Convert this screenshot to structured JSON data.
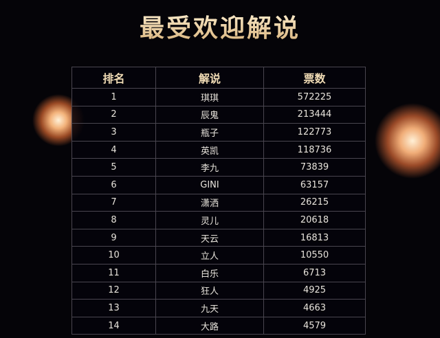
{
  "title": "最受欢迎解说",
  "table": {
    "headers": [
      "排名",
      "解说",
      "票数"
    ],
    "rows": [
      [
        "1",
        "琪琪",
        "572225"
      ],
      [
        "2",
        "辰鬼",
        "213444"
      ],
      [
        "3",
        "瓶子",
        "122773"
      ],
      [
        "4",
        "英凯",
        "118736"
      ],
      [
        "5",
        "李九",
        "73839"
      ],
      [
        "6",
        "GINI",
        "63157"
      ],
      [
        "7",
        "潇洒",
        "26215"
      ],
      [
        "8",
        "灵儿",
        "20618"
      ],
      [
        "9",
        "天云",
        "16813"
      ],
      [
        "10",
        "立人",
        "10550"
      ],
      [
        "11",
        "白乐",
        "6713"
      ],
      [
        "12",
        "狂人",
        "4925"
      ],
      [
        "13",
        "九天",
        "4663"
      ],
      [
        "14",
        "大路",
        "4579"
      ]
    ]
  },
  "colors": {
    "background": "#050408",
    "title": "#f3dcb0",
    "glow": "#f2b27a"
  }
}
